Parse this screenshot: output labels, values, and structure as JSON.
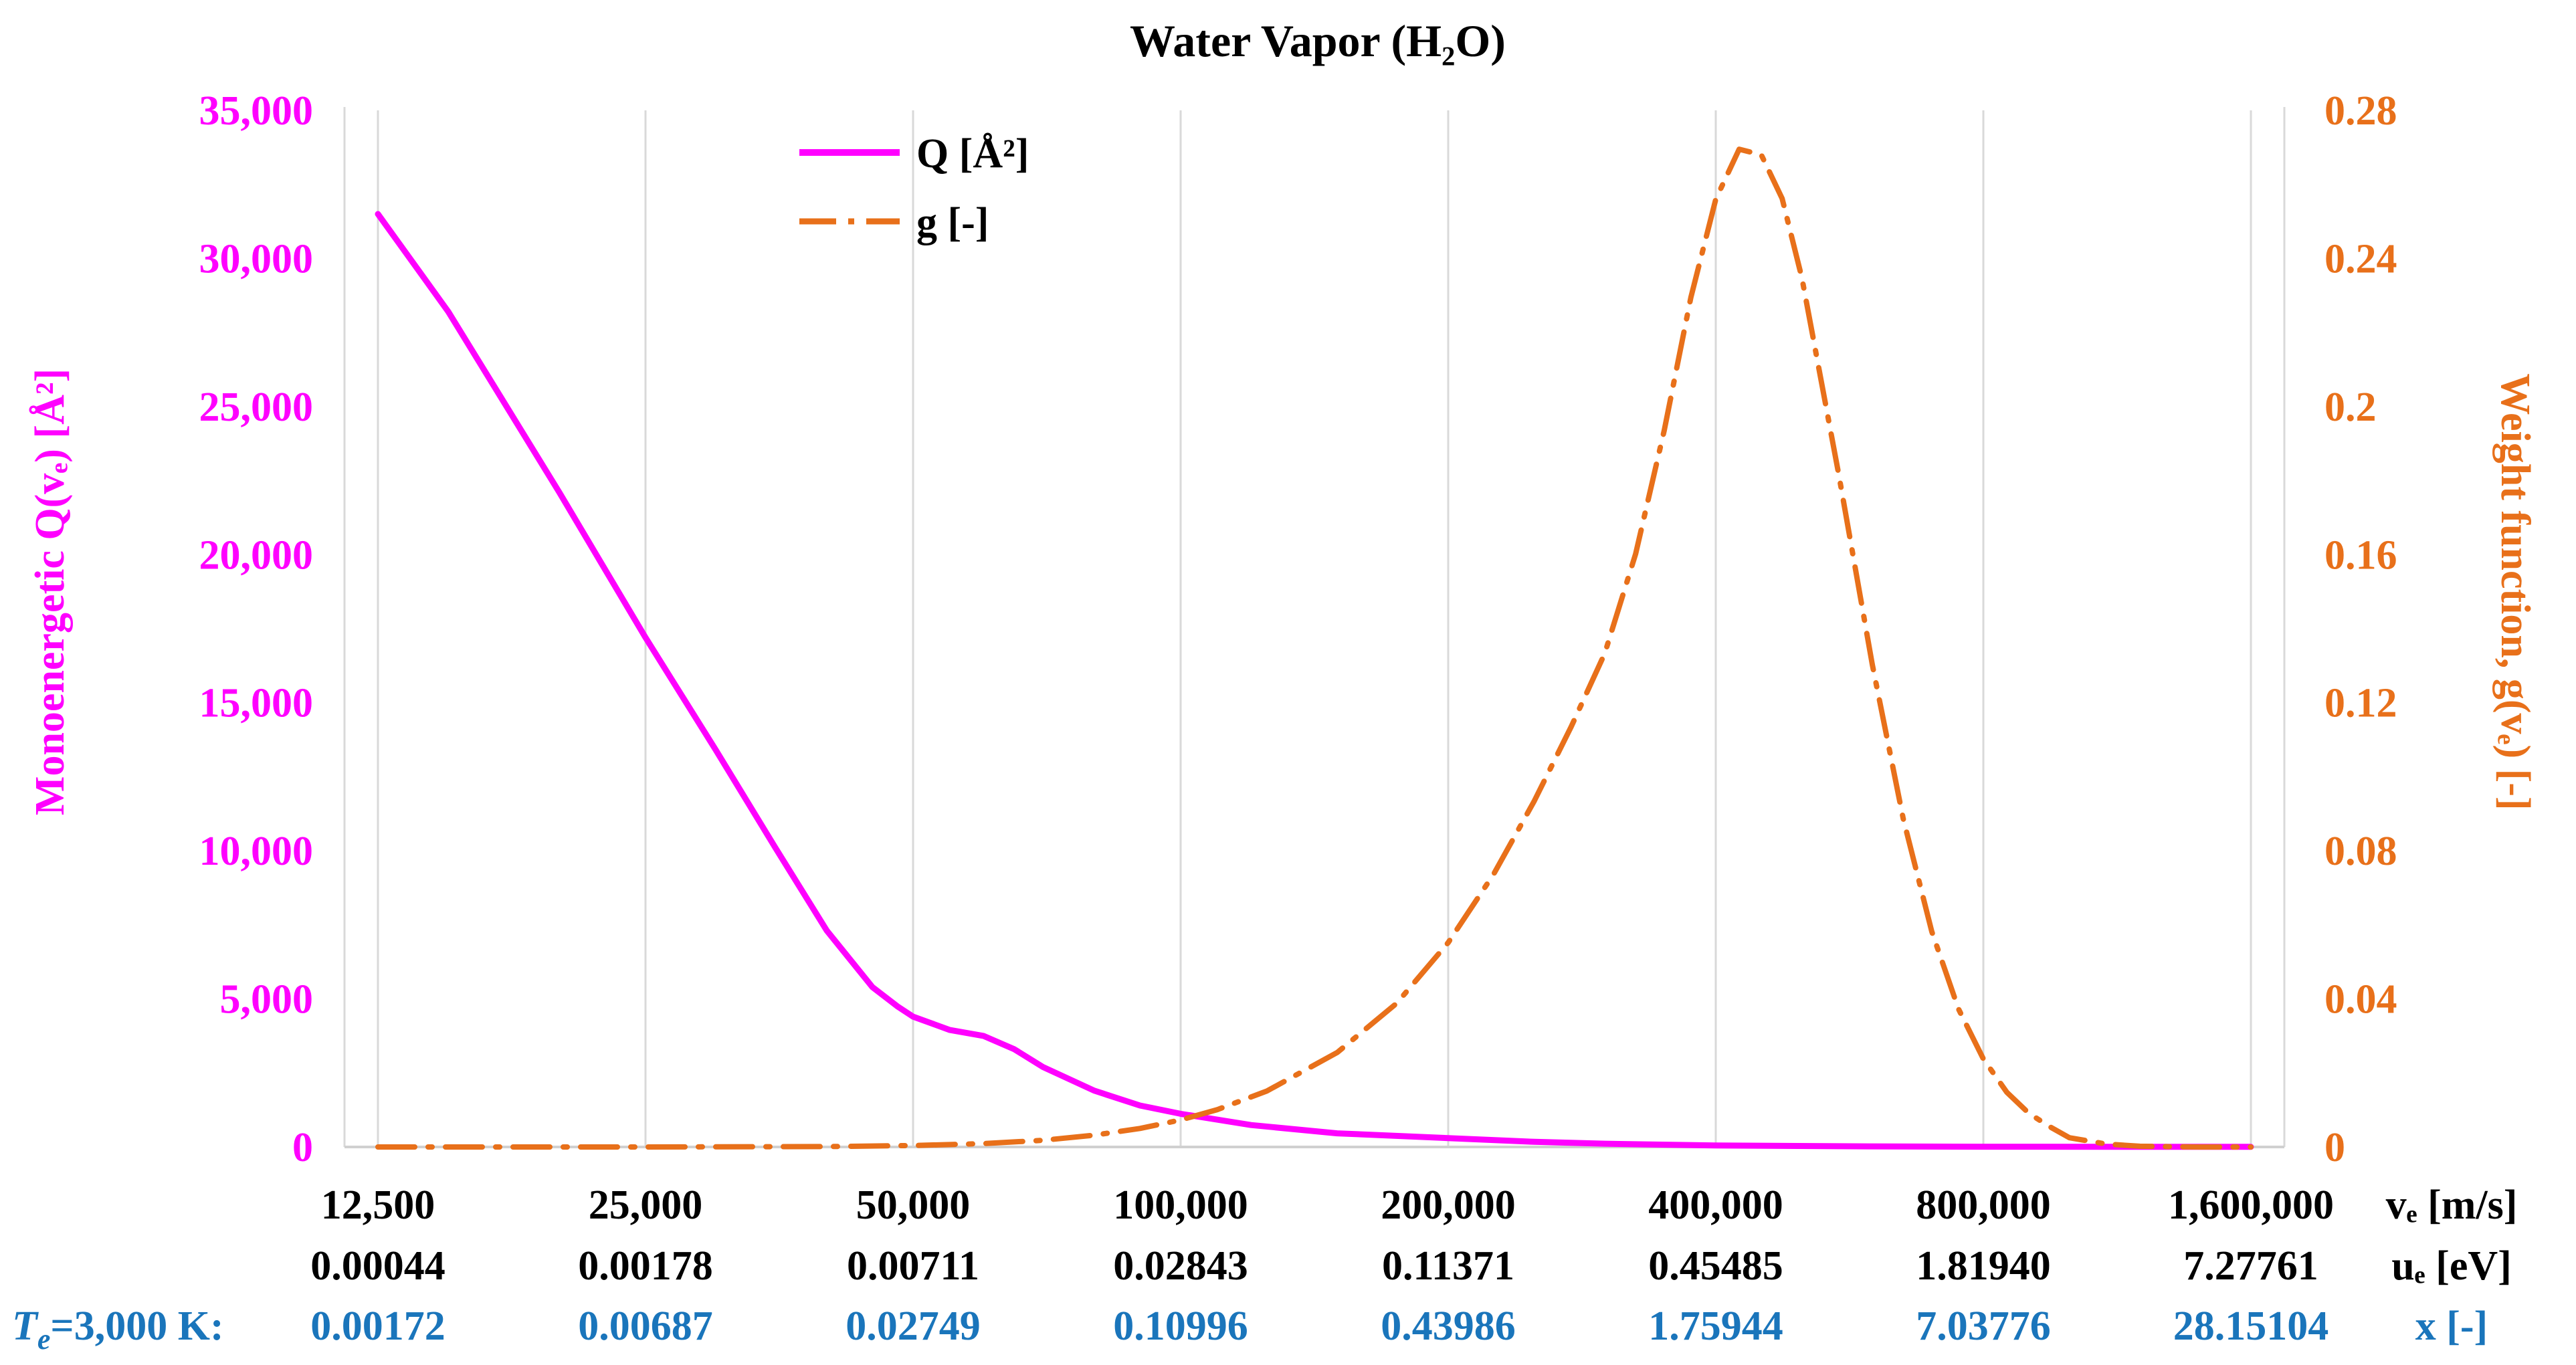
{
  "chart_data": {
    "type": "line",
    "title": "Water Vapor (H₂O)",
    "x_scale": "log2",
    "xlim": [
      12500,
      1600000
    ],
    "x_ticks": [
      12500,
      25000,
      50000,
      100000,
      200000,
      400000,
      800000,
      1600000
    ],
    "x_tick_labels": [
      "12,500",
      "25,000",
      "50,000",
      "100,000",
      "200,000",
      "400,000",
      "800,000",
      "1,600,000"
    ],
    "x_unit_label": "vₑ [m/s]",
    "energy_row": {
      "labels": [
        "0.00044",
        "0.00178",
        "0.00711",
        "0.02843",
        "0.11371",
        "0.45485",
        "1.81940",
        "7.27761"
      ],
      "unit_label": "uₑ [eV]"
    },
    "x_row": {
      "prefix_symbol": "T",
      "prefix_subscript": "e",
      "prefix_rest": "=3,000 K:",
      "labels": [
        "0.00172",
        "0.00687",
        "0.02749",
        "0.10996",
        "0.43986",
        "1.75944",
        "7.03776",
        "28.15104"
      ],
      "unit_label": "x [-]"
    },
    "y_left": {
      "label": "Monoenergetic Q(vₑ) [Å²]",
      "lim": [
        0,
        35000
      ],
      "ticks": [
        0,
        5000,
        10000,
        15000,
        20000,
        25000,
        30000,
        35000
      ],
      "tick_labels": [
        "0",
        "5,000",
        "10,000",
        "15,000",
        "20,000",
        "25,000",
        "30,000",
        "35,000"
      ]
    },
    "y_right": {
      "label": "Weight function, g(vₑ) [-]",
      "lim": [
        0,
        0.28
      ],
      "ticks": [
        0,
        0.04,
        0.08,
        0.12,
        0.16,
        0.2,
        0.24,
        0.28
      ],
      "tick_labels": [
        "0",
        "0.04",
        "0.08",
        "0.12",
        "0.16",
        "0.2",
        "0.24",
        "0.28"
      ]
    },
    "grid": "vertical",
    "legend_position": "top-left",
    "series": [
      {
        "name": "Q [Å²]",
        "axis": "left",
        "color": "#FF00FF",
        "style": "solid",
        "x": [
          12500,
          15000,
          20000,
          25000,
          30000,
          35000,
          40000,
          45000,
          48000,
          50000,
          55000,
          60000,
          65000,
          70000,
          80000,
          90000,
          100000,
          120000,
          150000,
          200000,
          250000,
          300000,
          400000,
          600000,
          800000,
          1200000,
          1600000
        ],
        "y": [
          31500,
          28200,
          22100,
          17200,
          13400,
          10100,
          7300,
          5400,
          4750,
          4400,
          3950,
          3750,
          3300,
          2700,
          1900,
          1400,
          1120,
          740,
          460,
          300,
          175,
          110,
          50,
          20,
          10,
          5,
          5
        ]
      },
      {
        "name": "g [-]",
        "axis": "right",
        "color": "#E8701A",
        "style": "dash-dot",
        "x": [
          12500,
          25000,
          40000,
          50000,
          60000,
          70000,
          80000,
          90000,
          100000,
          110000,
          125000,
          150000,
          175000,
          200000,
          225000,
          250000,
          275000,
          300000,
          325000,
          350000,
          375000,
          400000,
          425000,
          450000,
          475000,
          500000,
          550000,
          600000,
          650000,
          700000,
          750000,
          800000,
          850000,
          900000,
          950000,
          1000000,
          1100000,
          1200000,
          1400000,
          1600000
        ],
        "y": [
          0.0,
          0.0,
          0.0001,
          0.0004,
          0.0009,
          0.0018,
          0.0032,
          0.005,
          0.0073,
          0.0101,
          0.0151,
          0.0255,
          0.0388,
          0.0552,
          0.0737,
          0.0935,
          0.1135,
          0.1333,
          0.1602,
          0.1935,
          0.2295,
          0.256,
          0.2695,
          0.268,
          0.2562,
          0.2347,
          0.1817,
          0.1303,
          0.0887,
          0.0582,
          0.0373,
          0.0238,
          0.0148,
          0.0091,
          0.0055,
          0.0025,
          0.0008,
          0.0002,
          0.0,
          0.0
        ]
      }
    ]
  },
  "colors": {
    "q_axis": "#FF00FF",
    "g_axis": "#E8701A",
    "x_row": "#1A75BB",
    "text": "#000000",
    "grid": "#D9D9D9"
  }
}
